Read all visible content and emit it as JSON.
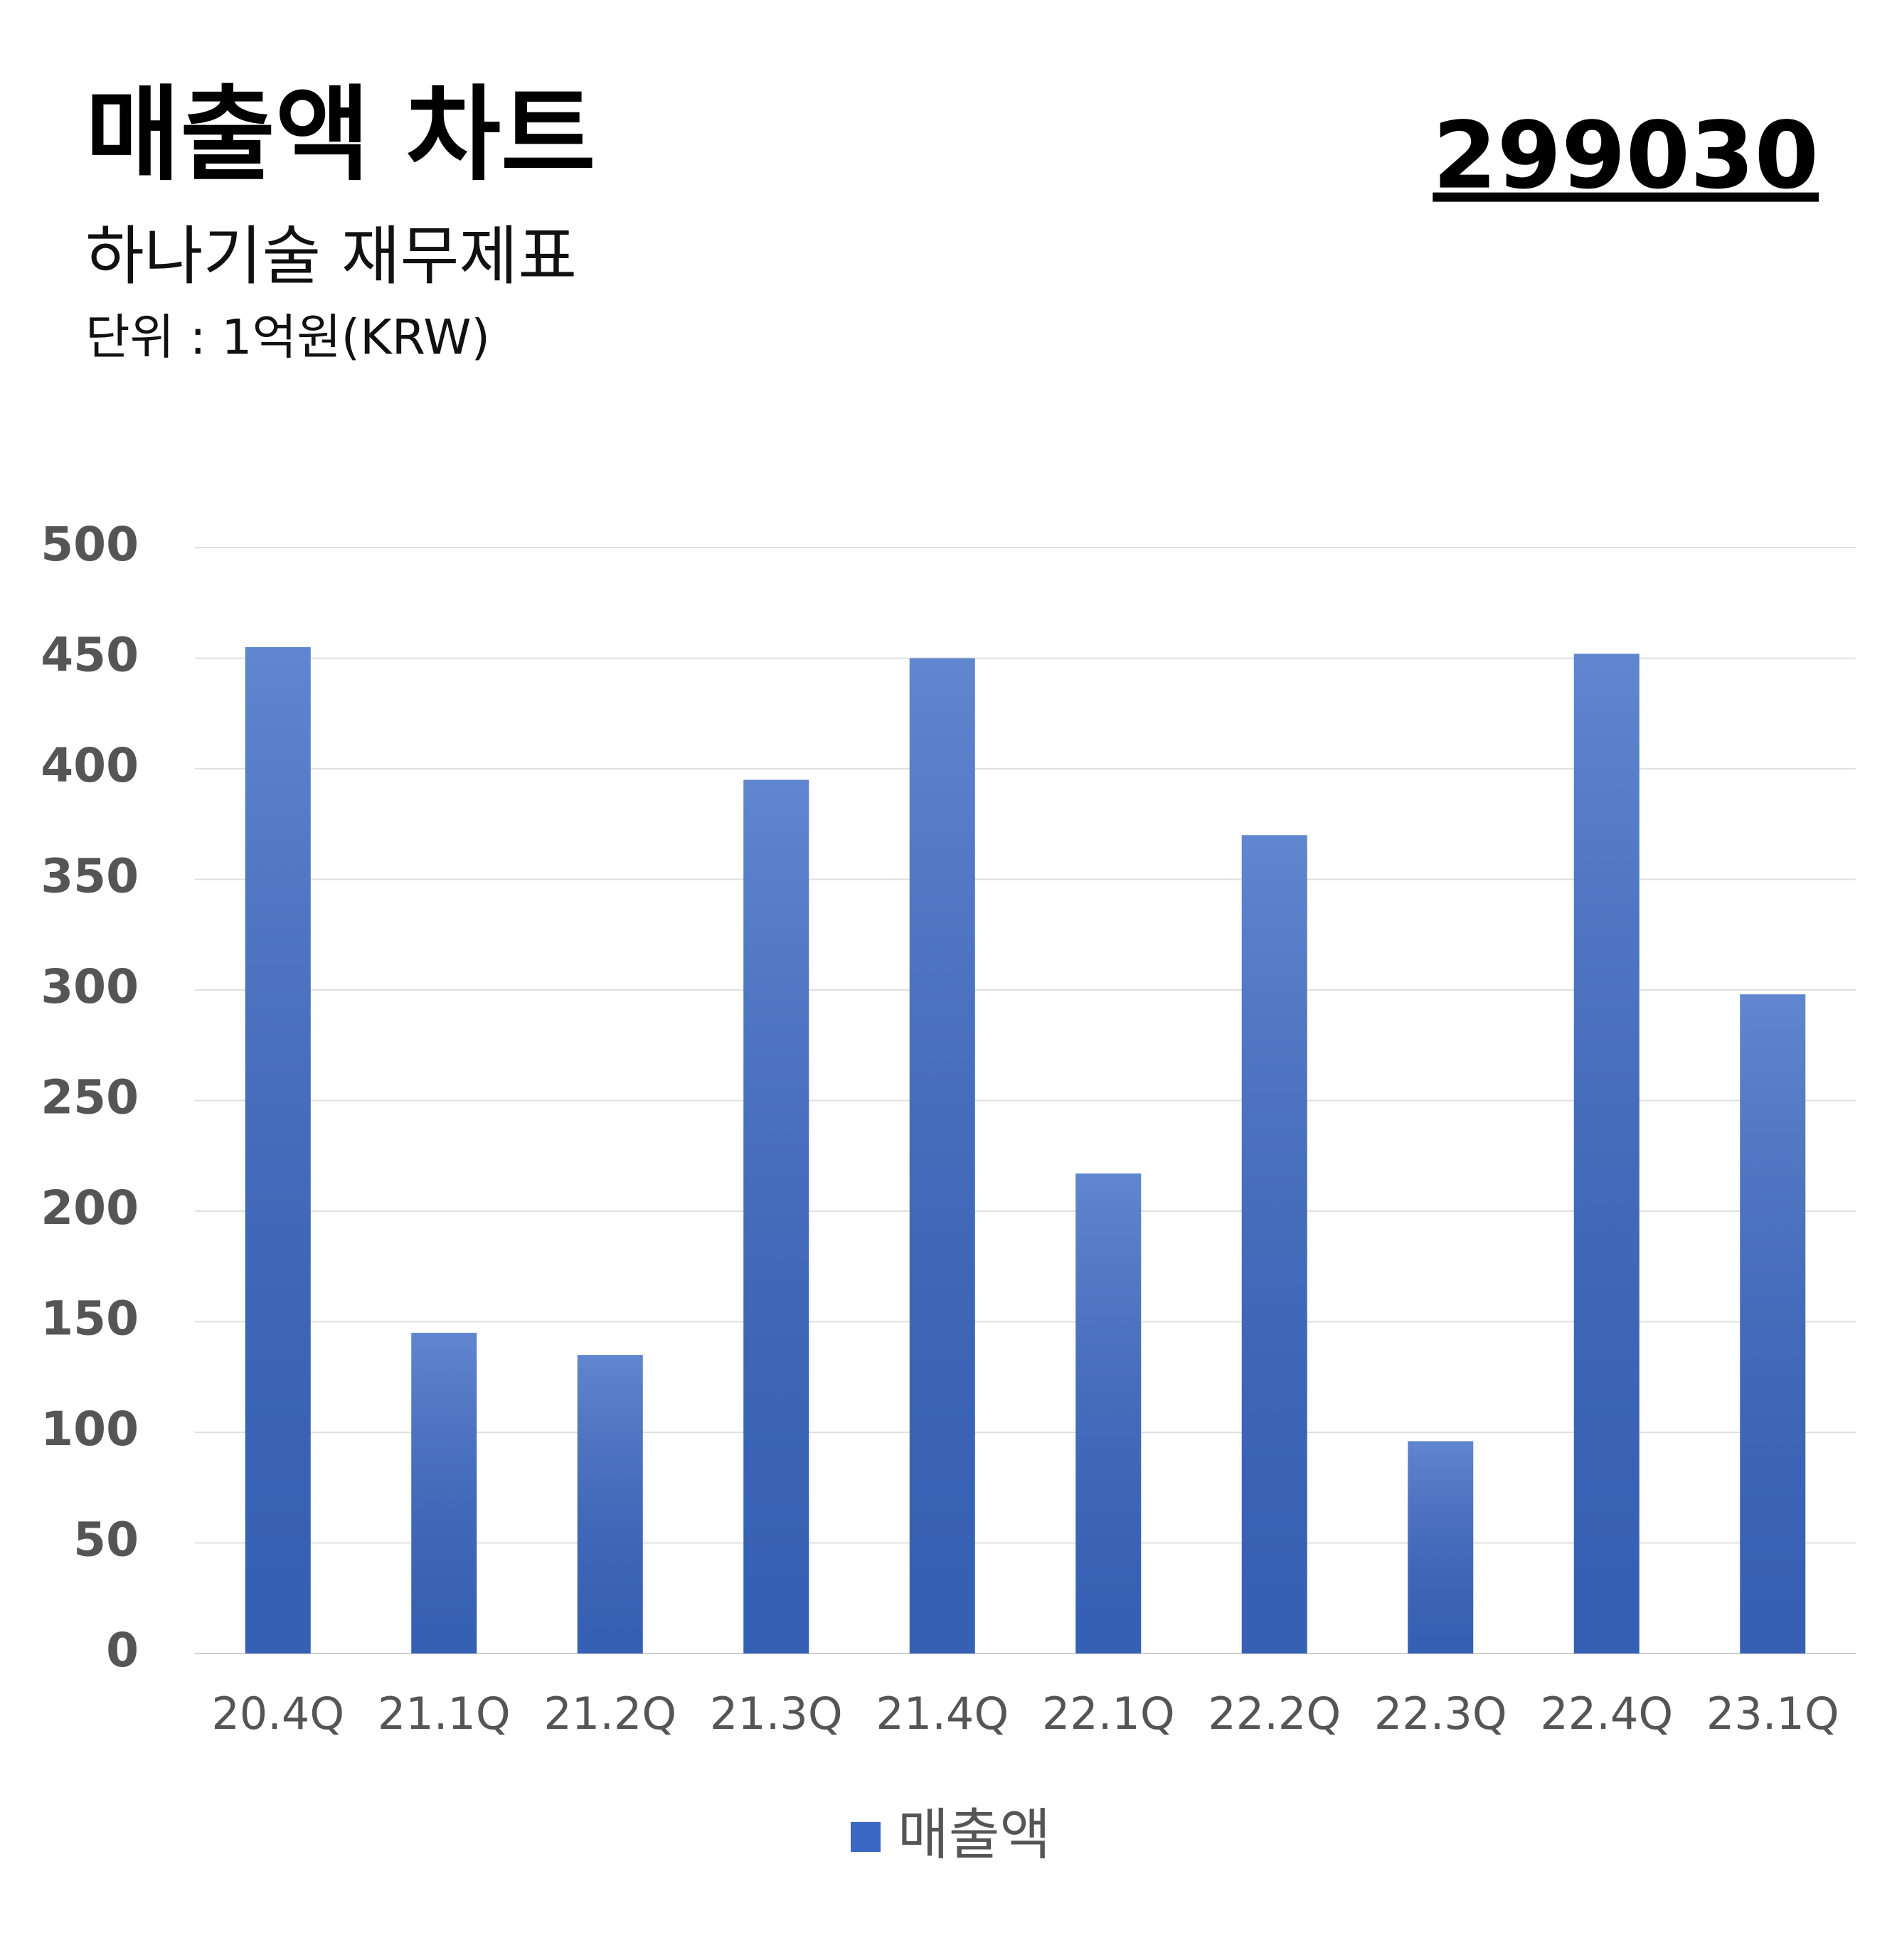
{
  "chart_data": {
    "type": "bar",
    "title": "매출액 차트",
    "code": "299030",
    "subtitle": "하나기술 재무제표",
    "unit": "단위 : 1억원(KRW)",
    "categories": [
      "20.4Q",
      "21.1Q",
      "21.2Q",
      "21.3Q",
      "21.4Q",
      "22.1Q",
      "22.2Q",
      "22.3Q",
      "22.4Q",
      "23.1Q"
    ],
    "series": [
      {
        "name": "매출액",
        "color": "#3a68c4",
        "values": [
          455,
          145,
          135,
          395,
          450,
          217,
          370,
          96,
          452,
          298
        ]
      }
    ],
    "ylim": [
      0,
      500
    ],
    "yticks": [
      0,
      50,
      100,
      150,
      200,
      250,
      300,
      350,
      400,
      450,
      500
    ],
    "grid": true,
    "legend": "bottom"
  }
}
